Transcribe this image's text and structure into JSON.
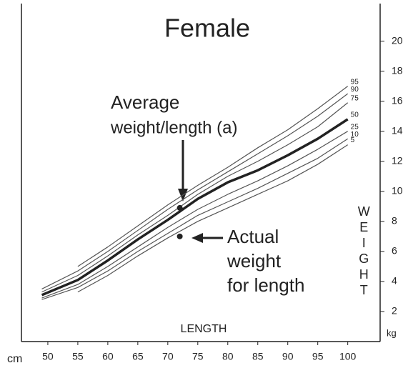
{
  "chart_data": {
    "type": "line",
    "title": "Female",
    "x_label": "LENGTH",
    "x_unit": "cm",
    "y_label": "WEIGHT",
    "y_unit": "kg",
    "x": [
      49,
      55,
      60,
      65,
      70,
      75,
      80,
      85,
      90,
      95,
      100
    ],
    "series": [
      {
        "name": "95",
        "color": "#555555",
        "values": [
          null,
          5.0,
          6.3,
          7.7,
          9.1,
          10.4,
          11.6,
          12.9,
          14.1,
          15.5,
          17.0
        ]
      },
      {
        "name": "90",
        "color": "#555555",
        "values": [
          3.5,
          4.7,
          6.0,
          7.4,
          8.8,
          10.1,
          11.3,
          12.5,
          13.7,
          15.0,
          16.5
        ]
      },
      {
        "name": "75",
        "color": "#555555",
        "values": [
          3.3,
          4.4,
          5.7,
          7.1,
          8.4,
          9.8,
          11.0,
          12.0,
          13.1,
          14.3,
          15.9
        ]
      },
      {
        "name": "50",
        "color": "#222222",
        "values": [
          3.1,
          4.1,
          5.4,
          6.8,
          8.1,
          9.5,
          10.6,
          11.4,
          12.4,
          13.5,
          14.8
        ]
      },
      {
        "name": "25",
        "color": "#555555",
        "values": [
          2.9,
          3.8,
          5.0,
          6.3,
          7.6,
          8.8,
          9.8,
          10.7,
          11.7,
          12.8,
          14.0
        ]
      },
      {
        "name": "10",
        "color": "#555555",
        "values": [
          2.8,
          3.6,
          4.7,
          6.0,
          7.2,
          8.4,
          9.3,
          10.2,
          11.2,
          12.2,
          13.5
        ]
      },
      {
        "name": "5",
        "color": "#555555",
        "values": [
          null,
          3.3,
          4.4,
          5.7,
          6.9,
          8.0,
          8.9,
          9.8,
          10.7,
          11.8,
          13.1
        ]
      }
    ],
    "points": [
      {
        "x": 72,
        "y": 8.9
      },
      {
        "x": 72,
        "y": 7.0
      }
    ],
    "annotations": {
      "average": [
        "Average",
        "weight/length (a)"
      ],
      "actual": [
        "Actual",
        "weight",
        "for length"
      ]
    },
    "xlim": [
      45.6,
      105.4
    ],
    "ylim": [
      0,
      22.5
    ],
    "xticks": [
      50,
      55,
      60,
      65,
      70,
      75,
      80,
      85,
      90,
      95,
      100
    ],
    "yticks": [
      2,
      4,
      6,
      8,
      10,
      12,
      14,
      16,
      18,
      20
    ]
  }
}
